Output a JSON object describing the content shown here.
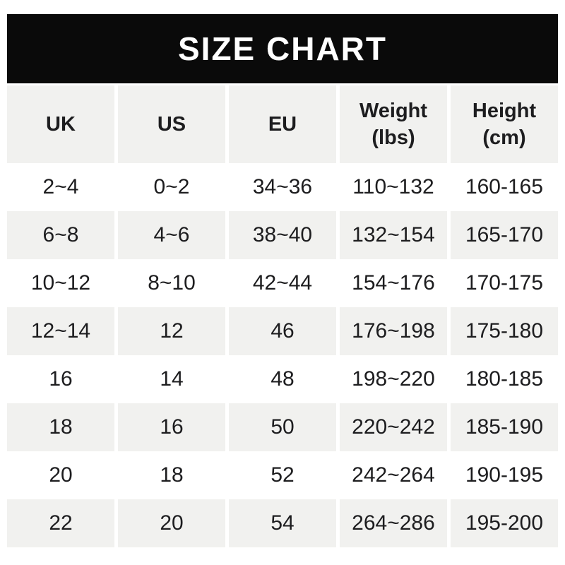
{
  "banner": {
    "title": "SIZE CHART",
    "bg_color": "#0a0a0a",
    "text_color": "#ffffff"
  },
  "table": {
    "headers": [
      "UK",
      "US",
      "EU",
      "Weight\n(lbs)",
      "Height\n(cm)"
    ],
    "rows": [
      [
        "2~4",
        "0~2",
        "34~36",
        "110~132",
        "160-165"
      ],
      [
        "6~8",
        "4~6",
        "38~40",
        "132~154",
        "165-170"
      ],
      [
        "10~12",
        "8~10",
        "42~44",
        "154~176",
        "170-175"
      ],
      [
        "12~14",
        "12",
        "46",
        "176~198",
        "175-180"
      ],
      [
        "16",
        "14",
        "48",
        "198~220",
        "180-185"
      ],
      [
        "18",
        "16",
        "50",
        "220~242",
        "185-190"
      ],
      [
        "20",
        "18",
        "52",
        "242~264",
        "190-195"
      ],
      [
        "22",
        "20",
        "54",
        "264~286",
        "195-200"
      ]
    ],
    "stripe_color": "#f1f1ef",
    "text_color": "#1d1d1f"
  },
  "chart_data": {
    "type": "table",
    "title": "SIZE CHART",
    "columns": [
      "UK",
      "US",
      "EU",
      "Weight (lbs)",
      "Height (cm)"
    ],
    "rows": [
      [
        "2~4",
        "0~2",
        "34~36",
        "110~132",
        "160-165"
      ],
      [
        "6~8",
        "4~6",
        "38~40",
        "132~154",
        "165-170"
      ],
      [
        "10~12",
        "8~10",
        "42~44",
        "154~176",
        "170-175"
      ],
      [
        "12~14",
        "12",
        "46",
        "176~198",
        "175-180"
      ],
      [
        "16",
        "14",
        "48",
        "198~220",
        "180-185"
      ],
      [
        "18",
        "16",
        "50",
        "220~242",
        "185-190"
      ],
      [
        "20",
        "18",
        "52",
        "242~264",
        "190-195"
      ],
      [
        "22",
        "20",
        "54",
        "264~286",
        "195-200"
      ]
    ],
    "layout_hints": {
      "striped_rows": "alternating white / #f1f1ef starting with white",
      "header_row_bg": "#f1f1ef",
      "title_bar": "black banner with white centered bold text"
    }
  }
}
